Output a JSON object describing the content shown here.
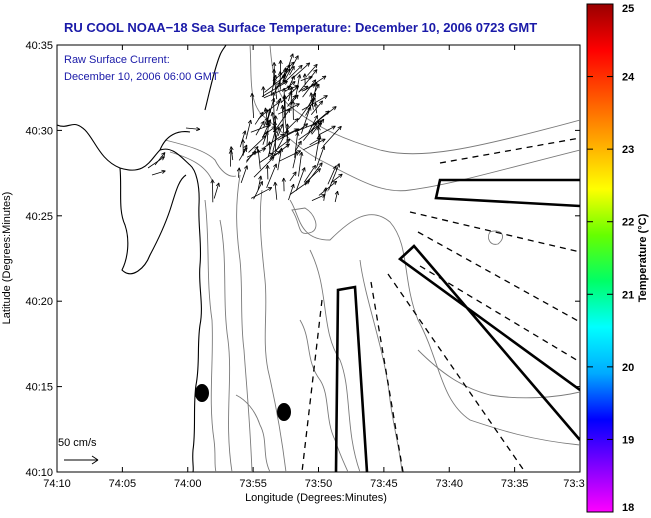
{
  "title": "RU COOL  NOAA−18  Sea Surface Temperature:  December 10, 2006 0723 GMT",
  "subtitle": {
    "line1": "Raw Surface Current:",
    "line2": "December 10, 2006 06:00 GMT"
  },
  "axes": {
    "xlabel": "Longitude (Degrees:Minutes)",
    "ylabel": "Latitude (Degrees:Minutes)",
    "x_ticks": [
      "74:10",
      "74:05",
      "74:00",
      "73:55",
      "73:50",
      "73:45",
      "73:40",
      "73:35",
      "73:3"
    ],
    "y_ticks": [
      "40:35",
      "40:30",
      "40:25",
      "40:20",
      "40:15",
      "40:10"
    ]
  },
  "scale_label": "50 cm/s",
  "colorbar": {
    "label": "Temperature (°C)",
    "min": 18,
    "max": 25,
    "ticks": [
      "25",
      "24",
      "23",
      "22",
      "21",
      "20",
      "19",
      "18"
    ],
    "colors": [
      "#ff00ff",
      "#7f00ff",
      "#0000ff",
      "#00aaff",
      "#00ffff",
      "#00ff66",
      "#66ff00",
      "#ffff00",
      "#ffaa00",
      "#ff5500",
      "#ff0000",
      "#990000"
    ]
  }
}
